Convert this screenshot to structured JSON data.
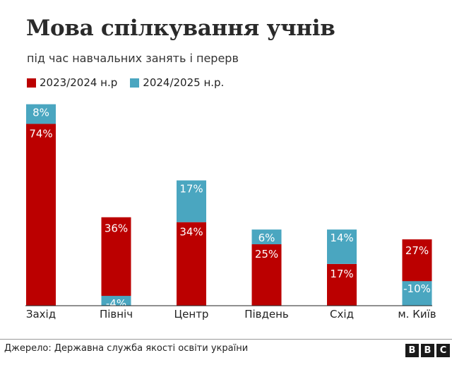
{
  "title": "Мова спілкування учнів",
  "subtitle": "під час навчальних занять і перерв",
  "source": "Джерело: Державна служба якості освіти україни",
  "logo": [
    "B",
    "B",
    "C"
  ],
  "colors": {
    "series1": "#bb0000",
    "series2": "#4aa6c0",
    "axis": "#222222"
  },
  "chart_data": {
    "type": "bar",
    "stacked": true,
    "categories": [
      "Захід",
      "Північ",
      "Центр",
      "Південь",
      "Схід",
      "м. Київ"
    ],
    "series": [
      {
        "name": "2023/2024 н.р",
        "values": [
          74,
          36,
          34,
          25,
          17,
          27
        ],
        "labels": [
          "74%",
          "36%",
          "34%",
          "25%",
          "17%",
          "27%"
        ]
      },
      {
        "name": "2024/2025 н.р.",
        "values": [
          8,
          -4,
          17,
          6,
          14,
          -10
        ],
        "labels": [
          "8%",
          "-4%",
          "17%",
          "6%",
          "14%",
          "-10%"
        ]
      }
    ],
    "legend_position": "top-left",
    "grid": false,
    "unit": "%"
  }
}
